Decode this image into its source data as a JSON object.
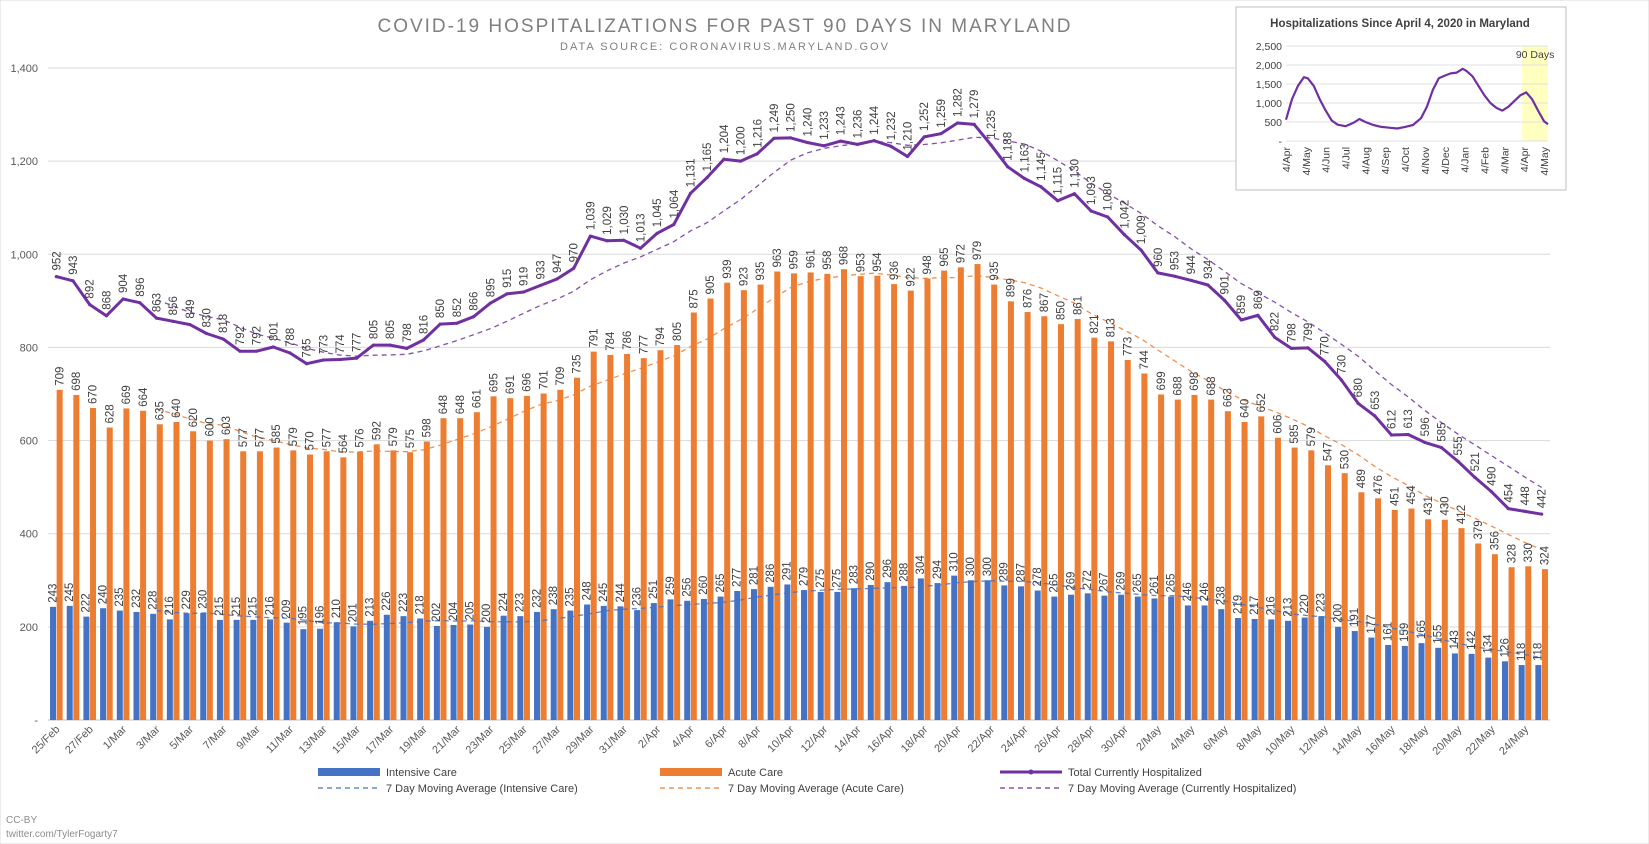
{
  "chart_data": {
    "type": "bar",
    "title": "COVID-19 HOSPITALIZATIONS FOR PAST 90 DAYS IN MARYLAND",
    "subtitle": "DATA SOURCE: CORONAVIRUS.MARYLAND.GOV",
    "ylim": [
      0,
      1400
    ],
    "yticks": [
      0,
      200,
      400,
      600,
      800,
      1000,
      1200,
      1400
    ],
    "ytick_labels": [
      "-",
      "200",
      "400",
      "600",
      "800",
      "1,000",
      "1,200",
      "1,400"
    ],
    "grid": true,
    "legend_position": "bottom",
    "x_tick_labels": [
      "25/Feb",
      "27/Feb",
      "1/Mar",
      "3/Mar",
      "5/Mar",
      "7/Mar",
      "9/Mar",
      "11/Mar",
      "13/Mar",
      "15/Mar",
      "17/Mar",
      "19/Mar",
      "21/Mar",
      "23/Mar",
      "25/Mar",
      "27/Mar",
      "29/Mar",
      "31/Mar",
      "2/Apr",
      "4/Apr",
      "6/Apr",
      "8/Apr",
      "10/Apr",
      "12/Apr",
      "14/Apr",
      "16/Apr",
      "18/Apr",
      "20/Apr",
      "22/Apr",
      "24/Apr",
      "26/Apr",
      "28/Apr",
      "30/Apr",
      "2/May",
      "4/May",
      "6/May",
      "8/May",
      "10/May",
      "12/May",
      "14/May",
      "16/May",
      "18/May",
      "20/May",
      "22/May",
      "24/May"
    ],
    "series": [
      {
        "name": "Intensive Care",
        "kind": "bar",
        "color": "#4472C4",
        "values": [
          243,
          245,
          222,
          240,
          235,
          232,
          228,
          216,
          229,
          230,
          215,
          215,
          215,
          216,
          209,
          195,
          196,
          210,
          201,
          213,
          226,
          223,
          218,
          202,
          204,
          205,
          200,
          224,
          223,
          232,
          238,
          235,
          248,
          245,
          244,
          236,
          251,
          259,
          256,
          260,
          265,
          277,
          281,
          286,
          291,
          279,
          275,
          275,
          283,
          290,
          296,
          288,
          304,
          294,
          310,
          300,
          300,
          289,
          287,
          278,
          265,
          269,
          272,
          267,
          269,
          265,
          261,
          265,
          246,
          246,
          238,
          219,
          217,
          216,
          213,
          220,
          223,
          200,
          191,
          177,
          161,
          159,
          165,
          155,
          143,
          142,
          134,
          126,
          118,
          118
        ]
      },
      {
        "name": "Acute Care",
        "kind": "bar",
        "color": "#ED7D31",
        "values": [
          709,
          698,
          670,
          628,
          669,
          664,
          635,
          640,
          620,
          600,
          603,
          577,
          577,
          585,
          579,
          570,
          577,
          564,
          576,
          592,
          579,
          575,
          598,
          648,
          648,
          661,
          695,
          691,
          696,
          701,
          709,
          735,
          791,
          784,
          786,
          777,
          794,
          805,
          875,
          905,
          939,
          923,
          935,
          963,
          959,
          961,
          958,
          968,
          953,
          954,
          936,
          922,
          948,
          965,
          972,
          979,
          935,
          899,
          876,
          867,
          850,
          861,
          821,
          813,
          773,
          744,
          699,
          688,
          698,
          688,
          663,
          640,
          652,
          606,
          585,
          579,
          547,
          530,
          489,
          476,
          451,
          454,
          431,
          430,
          412,
          379,
          356,
          328,
          330,
          324
        ]
      },
      {
        "name": "Total Currently Hospitalized",
        "kind": "line",
        "color": "#7030A0",
        "values": [
          952,
          943,
          892,
          868,
          904,
          896,
          863,
          856,
          849,
          830,
          818,
          792,
          792,
          801,
          788,
          765,
          773,
          774,
          777,
          805,
          805,
          798,
          816,
          850,
          852,
          866,
          895,
          915,
          919,
          933,
          947,
          970,
          1039,
          1029,
          1030,
          1013,
          1045,
          1064,
          1131,
          1165,
          1204,
          1200,
          1216,
          1249,
          1250,
          1240,
          1233,
          1243,
          1236,
          1244,
          1232,
          1210,
          1252,
          1259,
          1282,
          1279,
          1235,
          1188,
          1163,
          1145,
          1115,
          1130,
          1093,
          1080,
          1042,
          1009,
          960,
          953,
          944,
          934,
          901,
          859,
          869,
          822,
          798,
          799,
          770,
          730,
          680,
          653,
          612,
          613,
          596,
          585,
          555,
          521,
          490,
          454,
          448,
          442
        ]
      },
      {
        "name": "7 Day Moving Average (Intensive Care)",
        "kind": "ma",
        "of": 0,
        "color": "#4472C4"
      },
      {
        "name": "7 Day Moving Average (Acute Care)",
        "kind": "ma",
        "of": 1,
        "color": "#ED7D31"
      },
      {
        "name": "7 Day Moving Average (Currently Hospitalized)",
        "kind": "ma",
        "of": 2,
        "color": "#7030A0"
      }
    ],
    "inset": {
      "title": "Hospitalizations Since April 4, 2020 in Maryland",
      "ylim": [
        0,
        2500
      ],
      "yticks": [
        0,
        500,
        1000,
        1500,
        2000,
        2500
      ],
      "ytick_labels": [
        "-",
        "500",
        "1,000",
        "1,500",
        "2,000",
        "2,500"
      ],
      "x_tick_labels": [
        "4/Apr",
        "4/May",
        "4/Jun",
        "4/Jul",
        "4/Aug",
        "4/Sep",
        "4/Oct",
        "4/Nov",
        "4/Dec",
        "4/Jan",
        "4/Feb",
        "4/Mar",
        "4/Apr",
        "4/May"
      ],
      "highlight_label": "90 Days",
      "highlight_color": "#FFFFC0",
      "line_color": "#7030A0",
      "series": [
        {
          "x": 0,
          "y": 560
        },
        {
          "x": 0.3,
          "y": 1100
        },
        {
          "x": 0.6,
          "y": 1450
        },
        {
          "x": 0.9,
          "y": 1680
        },
        {
          "x": 1.1,
          "y": 1650
        },
        {
          "x": 1.4,
          "y": 1450
        },
        {
          "x": 1.7,
          "y": 1100
        },
        {
          "x": 2.0,
          "y": 800
        },
        {
          "x": 2.3,
          "y": 540
        },
        {
          "x": 2.6,
          "y": 430
        },
        {
          "x": 3.0,
          "y": 390
        },
        {
          "x": 3.4,
          "y": 480
        },
        {
          "x": 3.7,
          "y": 580
        },
        {
          "x": 4.0,
          "y": 500
        },
        {
          "x": 4.4,
          "y": 420
        },
        {
          "x": 4.8,
          "y": 370
        },
        {
          "x": 5.2,
          "y": 350
        },
        {
          "x": 5.6,
          "y": 330
        },
        {
          "x": 6.0,
          "y": 370
        },
        {
          "x": 6.4,
          "y": 420
        },
        {
          "x": 6.8,
          "y": 600
        },
        {
          "x": 7.1,
          "y": 900
        },
        {
          "x": 7.4,
          "y": 1350
        },
        {
          "x": 7.7,
          "y": 1650
        },
        {
          "x": 8.0,
          "y": 1720
        },
        {
          "x": 8.3,
          "y": 1780
        },
        {
          "x": 8.6,
          "y": 1800
        },
        {
          "x": 8.9,
          "y": 1900
        },
        {
          "x": 9.1,
          "y": 1840
        },
        {
          "x": 9.4,
          "y": 1700
        },
        {
          "x": 9.7,
          "y": 1450
        },
        {
          "x": 10.0,
          "y": 1200
        },
        {
          "x": 10.3,
          "y": 1000
        },
        {
          "x": 10.6,
          "y": 870
        },
        {
          "x": 10.9,
          "y": 800
        },
        {
          "x": 11.2,
          "y": 900
        },
        {
          "x": 11.5,
          "y": 1050
        },
        {
          "x": 11.8,
          "y": 1200
        },
        {
          "x": 12.1,
          "y": 1280
        },
        {
          "x": 12.4,
          "y": 1100
        },
        {
          "x": 12.7,
          "y": 800
        },
        {
          "x": 13.0,
          "y": 520
        },
        {
          "x": 13.2,
          "y": 442
        }
      ],
      "highlight_x": [
        11.9,
        13.2
      ]
    }
  },
  "credit": {
    "line1": "CC-BY",
    "line2": "twitter.com/TylerFogarty7"
  }
}
